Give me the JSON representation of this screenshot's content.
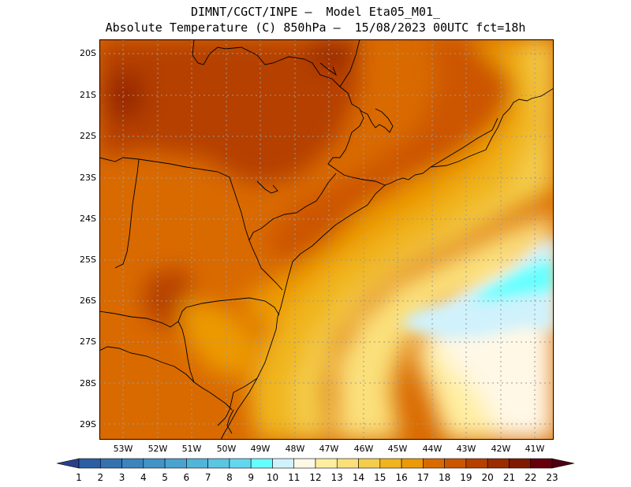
{
  "title": {
    "line1": "DIMNT/CGCT/INPE –  Model Eta05_M01_",
    "line2": "Absolute Temperature (C) 850hPa –  15/08/2023 00UTC fct=18h"
  },
  "map": {
    "lat_labels": [
      "20S",
      "21S",
      "22S",
      "23S",
      "24S",
      "25S",
      "26S",
      "27S",
      "28S",
      "29S"
    ],
    "lon_labels": [
      "53W",
      "52W",
      "51W",
      "50W",
      "49W",
      "48W",
      "47W",
      "46W",
      "45W",
      "44W",
      "43W",
      "42W",
      "41W"
    ]
  },
  "colorbar": {
    "labels": [
      "1",
      "2",
      "3",
      "4",
      "5",
      "6",
      "7",
      "8",
      "9",
      "10",
      "11",
      "12",
      "13",
      "14",
      "15",
      "16",
      "17",
      "18",
      "19",
      "20",
      "21",
      "22",
      "23"
    ],
    "colors": [
      "#27408b",
      "#2c5ea3",
      "#3571b0",
      "#3c84bd",
      "#4293c6",
      "#4aa3cf",
      "#52b4d7",
      "#5ac6e2",
      "#63d7ee",
      "#66ffff",
      "#d0f2fc",
      "#fff8e6",
      "#ffeea0",
      "#fbe07a",
      "#f4cd4c",
      "#f0b51e",
      "#ec9a06",
      "#d96a00",
      "#cc5500",
      "#b54000",
      "#9a2c00",
      "#7f1c00",
      "#66000d",
      "#4d0011"
    ]
  }
}
